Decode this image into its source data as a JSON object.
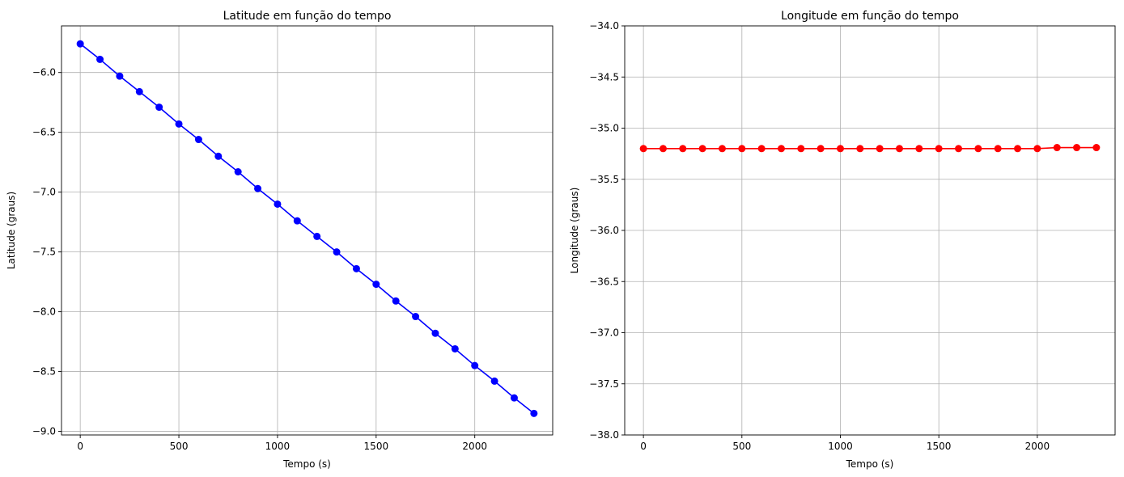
{
  "chart_data": [
    {
      "type": "line",
      "title": "Latitude em função do tempo",
      "xlabel": "Tempo (s)",
      "ylabel": "Latitude (graus)",
      "xlim": [
        -95,
        2395
      ],
      "ylim": [
        -9.03,
        -5.61
      ],
      "xticks": [
        0,
        500,
        1000,
        1500,
        2000
      ],
      "yticks": [
        -6.0,
        -6.5,
        -7.0,
        -7.5,
        -8.0,
        -8.5,
        -9.0
      ],
      "xtick_labels": [
        "0",
        "500",
        "1000",
        "1500",
        "2000"
      ],
      "ytick_labels": [
        "−6.0",
        "−6.5",
        "−7.0",
        "−7.5",
        "−8.0",
        "−8.5",
        "−9.0"
      ],
      "grid": true,
      "color": "#0000ff",
      "marker": "circle",
      "x": [
        0,
        100,
        200,
        300,
        400,
        500,
        600,
        700,
        800,
        900,
        1000,
        1100,
        1200,
        1300,
        1400,
        1500,
        1600,
        1700,
        1800,
        1900,
        2000,
        2100,
        2200,
        2300
      ],
      "y": [
        -5.76,
        -5.89,
        -6.03,
        -6.16,
        -6.29,
        -6.43,
        -6.56,
        -6.7,
        -6.83,
        -6.97,
        -7.1,
        -7.24,
        -7.37,
        -7.5,
        -7.64,
        -7.77,
        -7.91,
        -8.04,
        -8.18,
        -8.31,
        -8.45,
        -8.58,
        -8.72,
        -8.85
      ]
    },
    {
      "type": "line",
      "title": "Longitude em função do tempo",
      "xlabel": "Tempo (s)",
      "ylabel": "Longitude (graus)",
      "xlim": [
        -95,
        2395
      ],
      "ylim": [
        -38.0,
        -34.0
      ],
      "xticks": [
        0,
        500,
        1000,
        1500,
        2000
      ],
      "yticks": [
        -34.0,
        -34.5,
        -35.0,
        -35.5,
        -36.0,
        -36.5,
        -37.0,
        -37.5,
        -38.0
      ],
      "xtick_labels": [
        "0",
        "500",
        "1000",
        "1500",
        "2000"
      ],
      "ytick_labels": [
        "−34.0",
        "−34.5",
        "−35.0",
        "−35.5",
        "−36.0",
        "−36.5",
        "−37.0",
        "−37.5",
        "−38.0"
      ],
      "grid": true,
      "color": "#ff0000",
      "marker": "circle",
      "x": [
        0,
        100,
        200,
        300,
        400,
        500,
        600,
        700,
        800,
        900,
        1000,
        1100,
        1200,
        1300,
        1400,
        1500,
        1600,
        1700,
        1800,
        1900,
        2000,
        2100,
        2200,
        2300
      ],
      "y": [
        -35.2,
        -35.2,
        -35.2,
        -35.2,
        -35.2,
        -35.2,
        -35.2,
        -35.2,
        -35.2,
        -35.2,
        -35.2,
        -35.2,
        -35.2,
        -35.2,
        -35.2,
        -35.2,
        -35.2,
        -35.2,
        -35.2,
        -35.2,
        -35.2,
        -35.19,
        -35.19,
        -35.19
      ]
    }
  ]
}
